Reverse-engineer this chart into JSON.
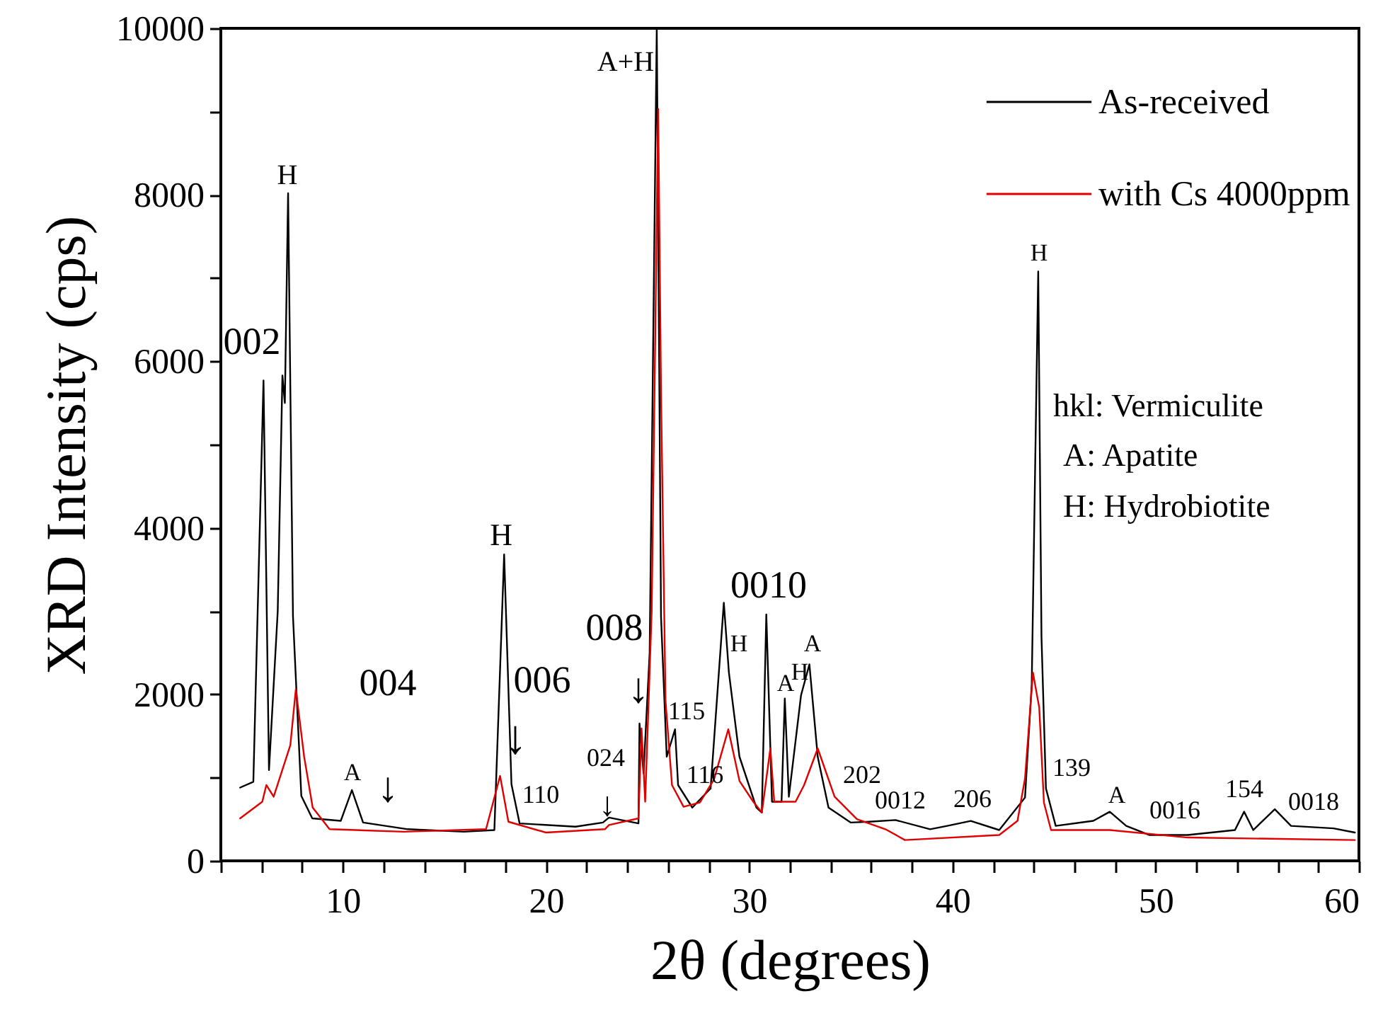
{
  "chart_data": {
    "type": "line",
    "xlabel": "2θ (degrees)",
    "ylabel": "XRD Intensity (cps)",
    "xlim": [
      4,
      60
    ],
    "xticks": [
      {
        "value": 4,
        "label": null
      },
      {
        "value": 6,
        "label": null
      },
      {
        "value": 8,
        "label": null
      },
      10,
      {
        "value": 12,
        "label": null
      },
      {
        "value": 14,
        "label": null
      },
      {
        "value": 16,
        "label": null
      },
      {
        "value": 18,
        "label": null
      },
      20,
      {
        "value": 22,
        "label": null
      },
      {
        "value": 24,
        "label": null
      },
      {
        "value": 26,
        "label": null
      },
      {
        "value": 28,
        "label": null
      },
      30,
      {
        "value": 32,
        "label": null
      },
      {
        "value": 34,
        "label": null
      },
      {
        "value": 36,
        "label": null
      },
      {
        "value": 38,
        "label": null
      },
      40,
      {
        "value": 42,
        "label": null
      },
      {
        "value": 44,
        "label": null
      },
      {
        "value": 46,
        "label": null
      },
      {
        "value": 48,
        "label": null
      },
      50,
      {
        "value": 52,
        "label": null
      },
      {
        "value": 54,
        "label": null
      },
      {
        "value": 56,
        "label": null
      },
      {
        "value": 58,
        "label": null
      },
      60
    ],
    "ylim": [
      0,
      10000
    ],
    "yticks": [
      0,
      {
        "value": 1000,
        "label": null
      },
      2000,
      {
        "value": 3000,
        "label": null
      },
      4000,
      {
        "value": 5000,
        "label": null
      },
      6000,
      {
        "value": 7000,
        "label": null
      },
      8000,
      {
        "value": 9000,
        "label": null
      },
      10000
    ],
    "grid": false,
    "legend": "top right",
    "marker": "none",
    "line_style": "solid",
    "series": [
      {
        "name": "As-received",
        "color": "#000000",
        "x": [
          4.95,
          5.6,
          6.1,
          6.37,
          6.8,
          7.03,
          7.15,
          7.31,
          7.55,
          7.96,
          8.5,
          9.9,
          10.45,
          11.0,
          13.2,
          15.96,
          17.46,
          17.94,
          18.3,
          18.7,
          21.45,
          22.8,
          23.1,
          24.55,
          24.6,
          24.8,
          25.1,
          25.45,
          25.66,
          25.94,
          26.35,
          26.5,
          27.2,
          28.1,
          28.75,
          29.0,
          29.52,
          30.35,
          30.62,
          30.84,
          31.12,
          31.59,
          31.75,
          31.95,
          32.55,
          32.96,
          33.37,
          33.9,
          35.0,
          35.9,
          37.2,
          38.9,
          39.74,
          40.9,
          42.3,
          43.57,
          43.9,
          44.22,
          44.38,
          44.6,
          45.08,
          46.93,
          47.74,
          48.55,
          49.7,
          51.57,
          53.9,
          54.35,
          54.8,
          55.86,
          56.66,
          58.75,
          59.8
        ],
        "values": [
          880,
          950,
          5770,
          1090,
          3000,
          5830,
          5500,
          8020,
          2940,
          780,
          510,
          480,
          850,
          460,
          380,
          350,
          370,
          3680,
          920,
          450,
          410,
          460,
          520,
          450,
          1650,
          1050,
          2500,
          10000,
          2930,
          1250,
          1580,
          910,
          640,
          870,
          3100,
          2260,
          1250,
          640,
          580,
          2960,
          710,
          710,
          1950,
          770,
          1990,
          2360,
          1250,
          640,
          460,
          470,
          490,
          380,
          420,
          480,
          370,
          760,
          2120,
          7080,
          2690,
          870,
          420,
          480,
          590,
          420,
          310,
          310,
          370,
          590,
          370,
          620,
          420,
          390,
          340
        ]
      },
      {
        "name": "with Cs 4000ppm",
        "color": "#e00000",
        "x": [
          4.95,
          6.04,
          6.24,
          6.6,
          7.42,
          7.69,
          8.1,
          8.52,
          9.35,
          13.0,
          17.05,
          17.74,
          18.15,
          20.0,
          22.9,
          23.1,
          24.55,
          24.7,
          24.88,
          25.2,
          25.52,
          25.66,
          25.88,
          26.2,
          26.77,
          27.57,
          28.27,
          28.97,
          29.52,
          30.2,
          30.62,
          31.04,
          31.23,
          32.28,
          32.7,
          33.37,
          34.2,
          35.3,
          36.7,
          37.66,
          42.3,
          43.2,
          43.57,
          43.96,
          44.27,
          44.5,
          44.85,
          47.74,
          51.57,
          59.8
        ],
        "values": [
          510,
          710,
          910,
          770,
          1390,
          2060,
          1250,
          640,
          380,
          350,
          380,
          1020,
          470,
          340,
          380,
          430,
          510,
          1590,
          710,
          3000,
          9030,
          5630,
          1920,
          910,
          650,
          700,
          980,
          1580,
          960,
          710,
          580,
          1350,
          710,
          710,
          910,
          1350,
          770,
          500,
          380,
          250,
          310,
          480,
          990,
          2260,
          1840,
          700,
          370,
          370,
          280,
          250
        ]
      }
    ],
    "annotations": [
      "002",
      "H",
      "A",
      "004",
      "↓",
      "H",
      "006",
      "↓",
      "110",
      "024",
      "↓",
      "008",
      "↓",
      "A+H",
      "115",
      "116",
      "0010",
      "H",
      "A",
      "H",
      "A",
      "202",
      "0012",
      "206",
      "H",
      "139",
      "A",
      "0016",
      "154",
      "0018",
      "hkl: Vermiculite",
      "A:  Apatite",
      "H:  Hydrobiotite"
    ]
  }
}
